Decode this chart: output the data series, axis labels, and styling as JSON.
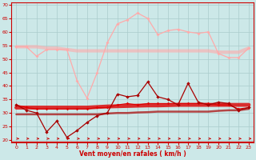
{
  "x": [
    0,
    1,
    2,
    3,
    4,
    5,
    6,
    7,
    8,
    9,
    10,
    11,
    12,
    13,
    14,
    15,
    16,
    17,
    18,
    19,
    20,
    21,
    22,
    23
  ],
  "line_upper_smooth": [
    54.5,
    54.5,
    54.5,
    54.0,
    54.0,
    53.5,
    53.0,
    53.0,
    53.0,
    53.0,
    53.0,
    53.0,
    53.0,
    53.0,
    53.0,
    53.0,
    53.0,
    53.0,
    53.0,
    53.0,
    52.5,
    52.5,
    52.5,
    54.0
  ],
  "line_upper_data": [
    54.5,
    54.5,
    51.0,
    53.5,
    53.5,
    53.5,
    42.0,
    35.5,
    45.0,
    56.0,
    63.0,
    64.5,
    67.0,
    65.0,
    59.0,
    60.5,
    61.0,
    60.0,
    59.5,
    60.0,
    52.0,
    50.5,
    50.5,
    54.0
  ],
  "line_mid_smooth": [
    32.0,
    32.0,
    32.0,
    32.0,
    32.0,
    32.0,
    32.0,
    32.0,
    32.2,
    32.4,
    32.5,
    32.6,
    32.7,
    32.8,
    32.8,
    32.9,
    33.0,
    33.0,
    33.0,
    33.0,
    33.0,
    33.0,
    33.0,
    33.0
  ],
  "line_mid_data": [
    33.0,
    32.0,
    31.5,
    31.5,
    31.5,
    31.5,
    31.5,
    31.5,
    32.0,
    32.0,
    33.0,
    33.5,
    33.0,
    33.5,
    33.5,
    33.5,
    33.5,
    33.5,
    33.5,
    33.5,
    33.0,
    33.0,
    31.5,
    32.0
  ],
  "line_lower_data": [
    33.0,
    31.0,
    30.0,
    23.0,
    27.0,
    21.0,
    23.5,
    26.5,
    29.0,
    30.0,
    37.0,
    36.0,
    36.5,
    41.5,
    36.0,
    35.0,
    33.0,
    41.0,
    34.0,
    33.0,
    34.0,
    33.5,
    31.0,
    32.0
  ],
  "line_lower_smooth": [
    29.5,
    29.5,
    29.5,
    29.5,
    29.5,
    29.5,
    29.5,
    29.5,
    29.5,
    29.8,
    30.0,
    30.0,
    30.2,
    30.3,
    30.5,
    30.5,
    30.5,
    30.5,
    30.5,
    30.5,
    30.8,
    31.0,
    31.0,
    31.5
  ],
  "xlabel": "Vent moyen/en rafales ( km/h )",
  "ylim": [
    19,
    71
  ],
  "yticks": [
    20,
    25,
    30,
    35,
    40,
    45,
    50,
    55,
    60,
    65,
    70
  ],
  "xticks": [
    0,
    1,
    2,
    3,
    4,
    5,
    6,
    7,
    8,
    9,
    10,
    11,
    12,
    13,
    14,
    15,
    16,
    17,
    18,
    19,
    20,
    21,
    22,
    23
  ],
  "bg_color": "#cce8e8",
  "grid_color": "#aacccc",
  "line_pink_color": "#ffaaaa",
  "line_red_color": "#dd0000",
  "line_darkred_color": "#aa0000",
  "arrow_color": "#cc0000",
  "xlabel_color": "#cc0000"
}
